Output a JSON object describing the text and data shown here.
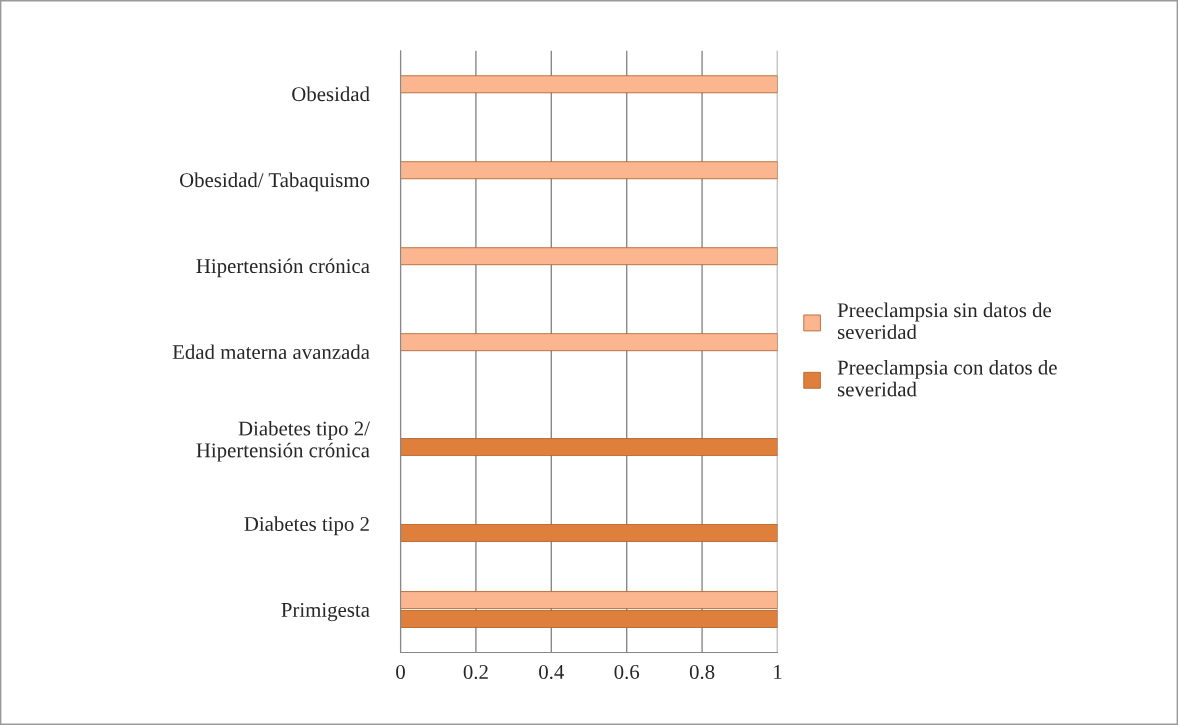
{
  "chart_data": {
    "type": "bar",
    "orientation": "horizontal",
    "categories": [
      "Obesidad",
      "Obesidad/ Tabaquismo",
      "Hipertensión crónica",
      "Edad materna avanzada",
      "Diabetes tipo 2/ Hipertensión crónica",
      "Diabetes tipo 2",
      "Primigesta"
    ],
    "series": [
      {
        "name": "Preeclampsia sin datos de severidad",
        "color": "#fbb690",
        "values": [
          1,
          1,
          1,
          1,
          null,
          null,
          1
        ]
      },
      {
        "name": "Preeclampsia con datos de severidad",
        "color": "#df7f3c",
        "values": [
          null,
          null,
          null,
          null,
          1,
          1,
          1
        ]
      }
    ],
    "xlim": [
      0,
      1
    ],
    "xticks": [
      0,
      0.2,
      0.4,
      0.6,
      0.8,
      1
    ],
    "grid": "x",
    "legend": "right"
  }
}
